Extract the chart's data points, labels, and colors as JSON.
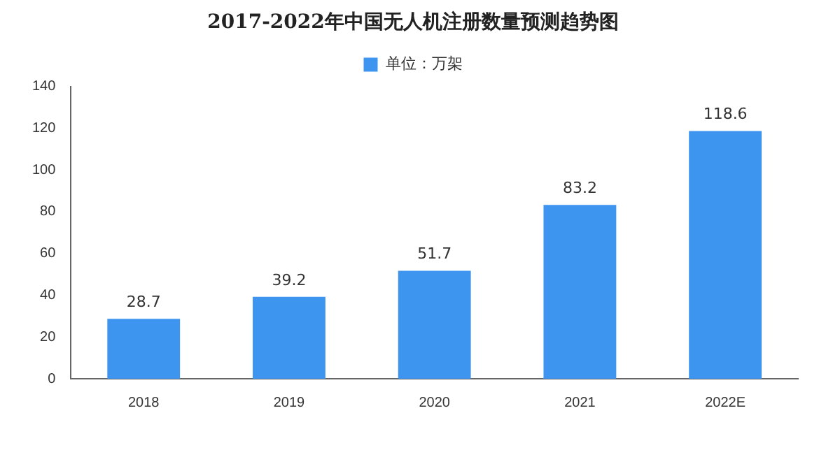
{
  "chart_data": {
    "type": "bar",
    "title": "2017-2022年中国无人机注册数量预测趋势图",
    "categories": [
      "2018",
      "2019",
      "2020",
      "2021",
      "2022E"
    ],
    "series": [
      {
        "name": "单位：万架",
        "color": "#3d95f0",
        "values": [
          28.7,
          39.2,
          51.7,
          83.2,
          118.6
        ]
      }
    ],
    "ylim": [
      0,
      140
    ],
    "yticks": [
      0,
      20,
      40,
      60,
      80,
      100,
      120,
      140
    ],
    "grid": false,
    "legend": "top",
    "data_labels": true
  }
}
